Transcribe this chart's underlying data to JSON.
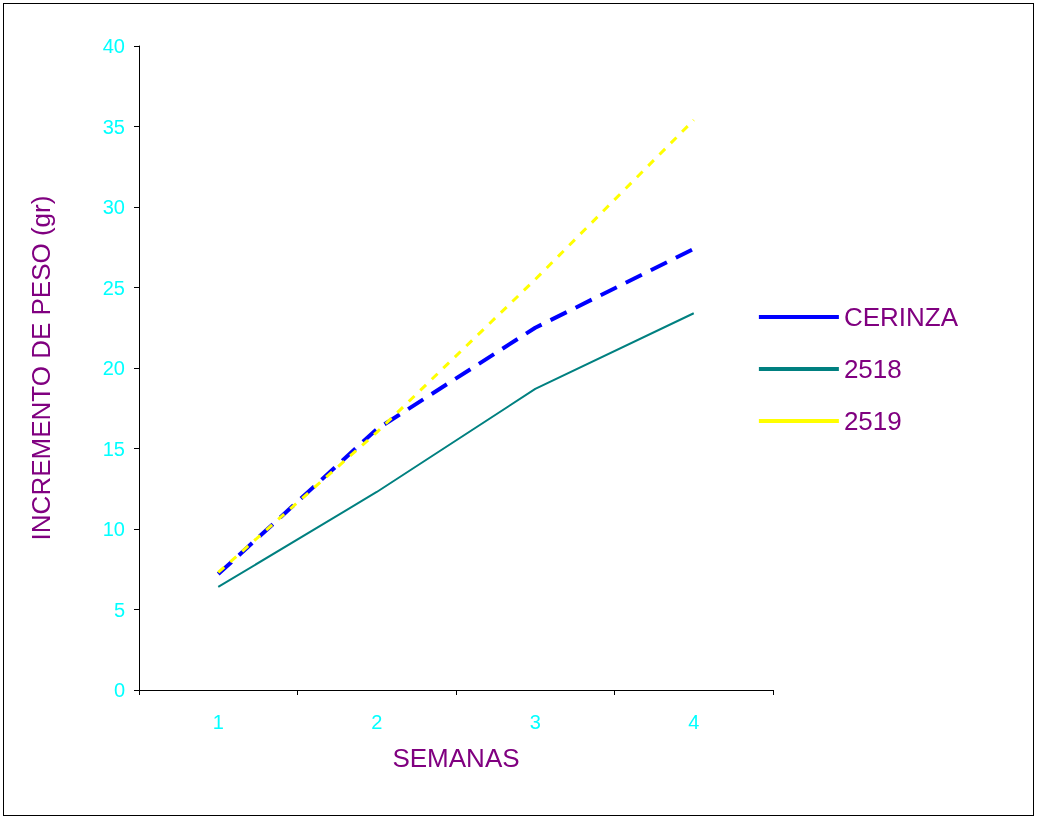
{
  "chart_data": {
    "type": "line",
    "xlabel": "SEMANAS",
    "ylabel": "INCREMENTO DE PESO (gr)",
    "categories": [
      "1",
      "2",
      "3",
      "4"
    ],
    "ylim": [
      0,
      40
    ],
    "yticks": [
      0,
      5,
      10,
      15,
      20,
      25,
      30,
      35,
      40
    ],
    "grid": false,
    "legend": "right",
    "marker": "none",
    "series": [
      {
        "name": "CERINZA",
        "color": "#0000ff",
        "line_style": "dashed",
        "values": [
          7.2,
          16.2,
          22.5,
          27.4
        ]
      },
      {
        "name": "2518",
        "color": "#008080",
        "line_style": "solid",
        "values": [
          6.4,
          12.3,
          18.7,
          23.4
        ]
      },
      {
        "name": "2519",
        "color": "#ffff00",
        "line_style": "dotted",
        "values": [
          7.3,
          16.0,
          25.5,
          35.4
        ]
      }
    ]
  }
}
